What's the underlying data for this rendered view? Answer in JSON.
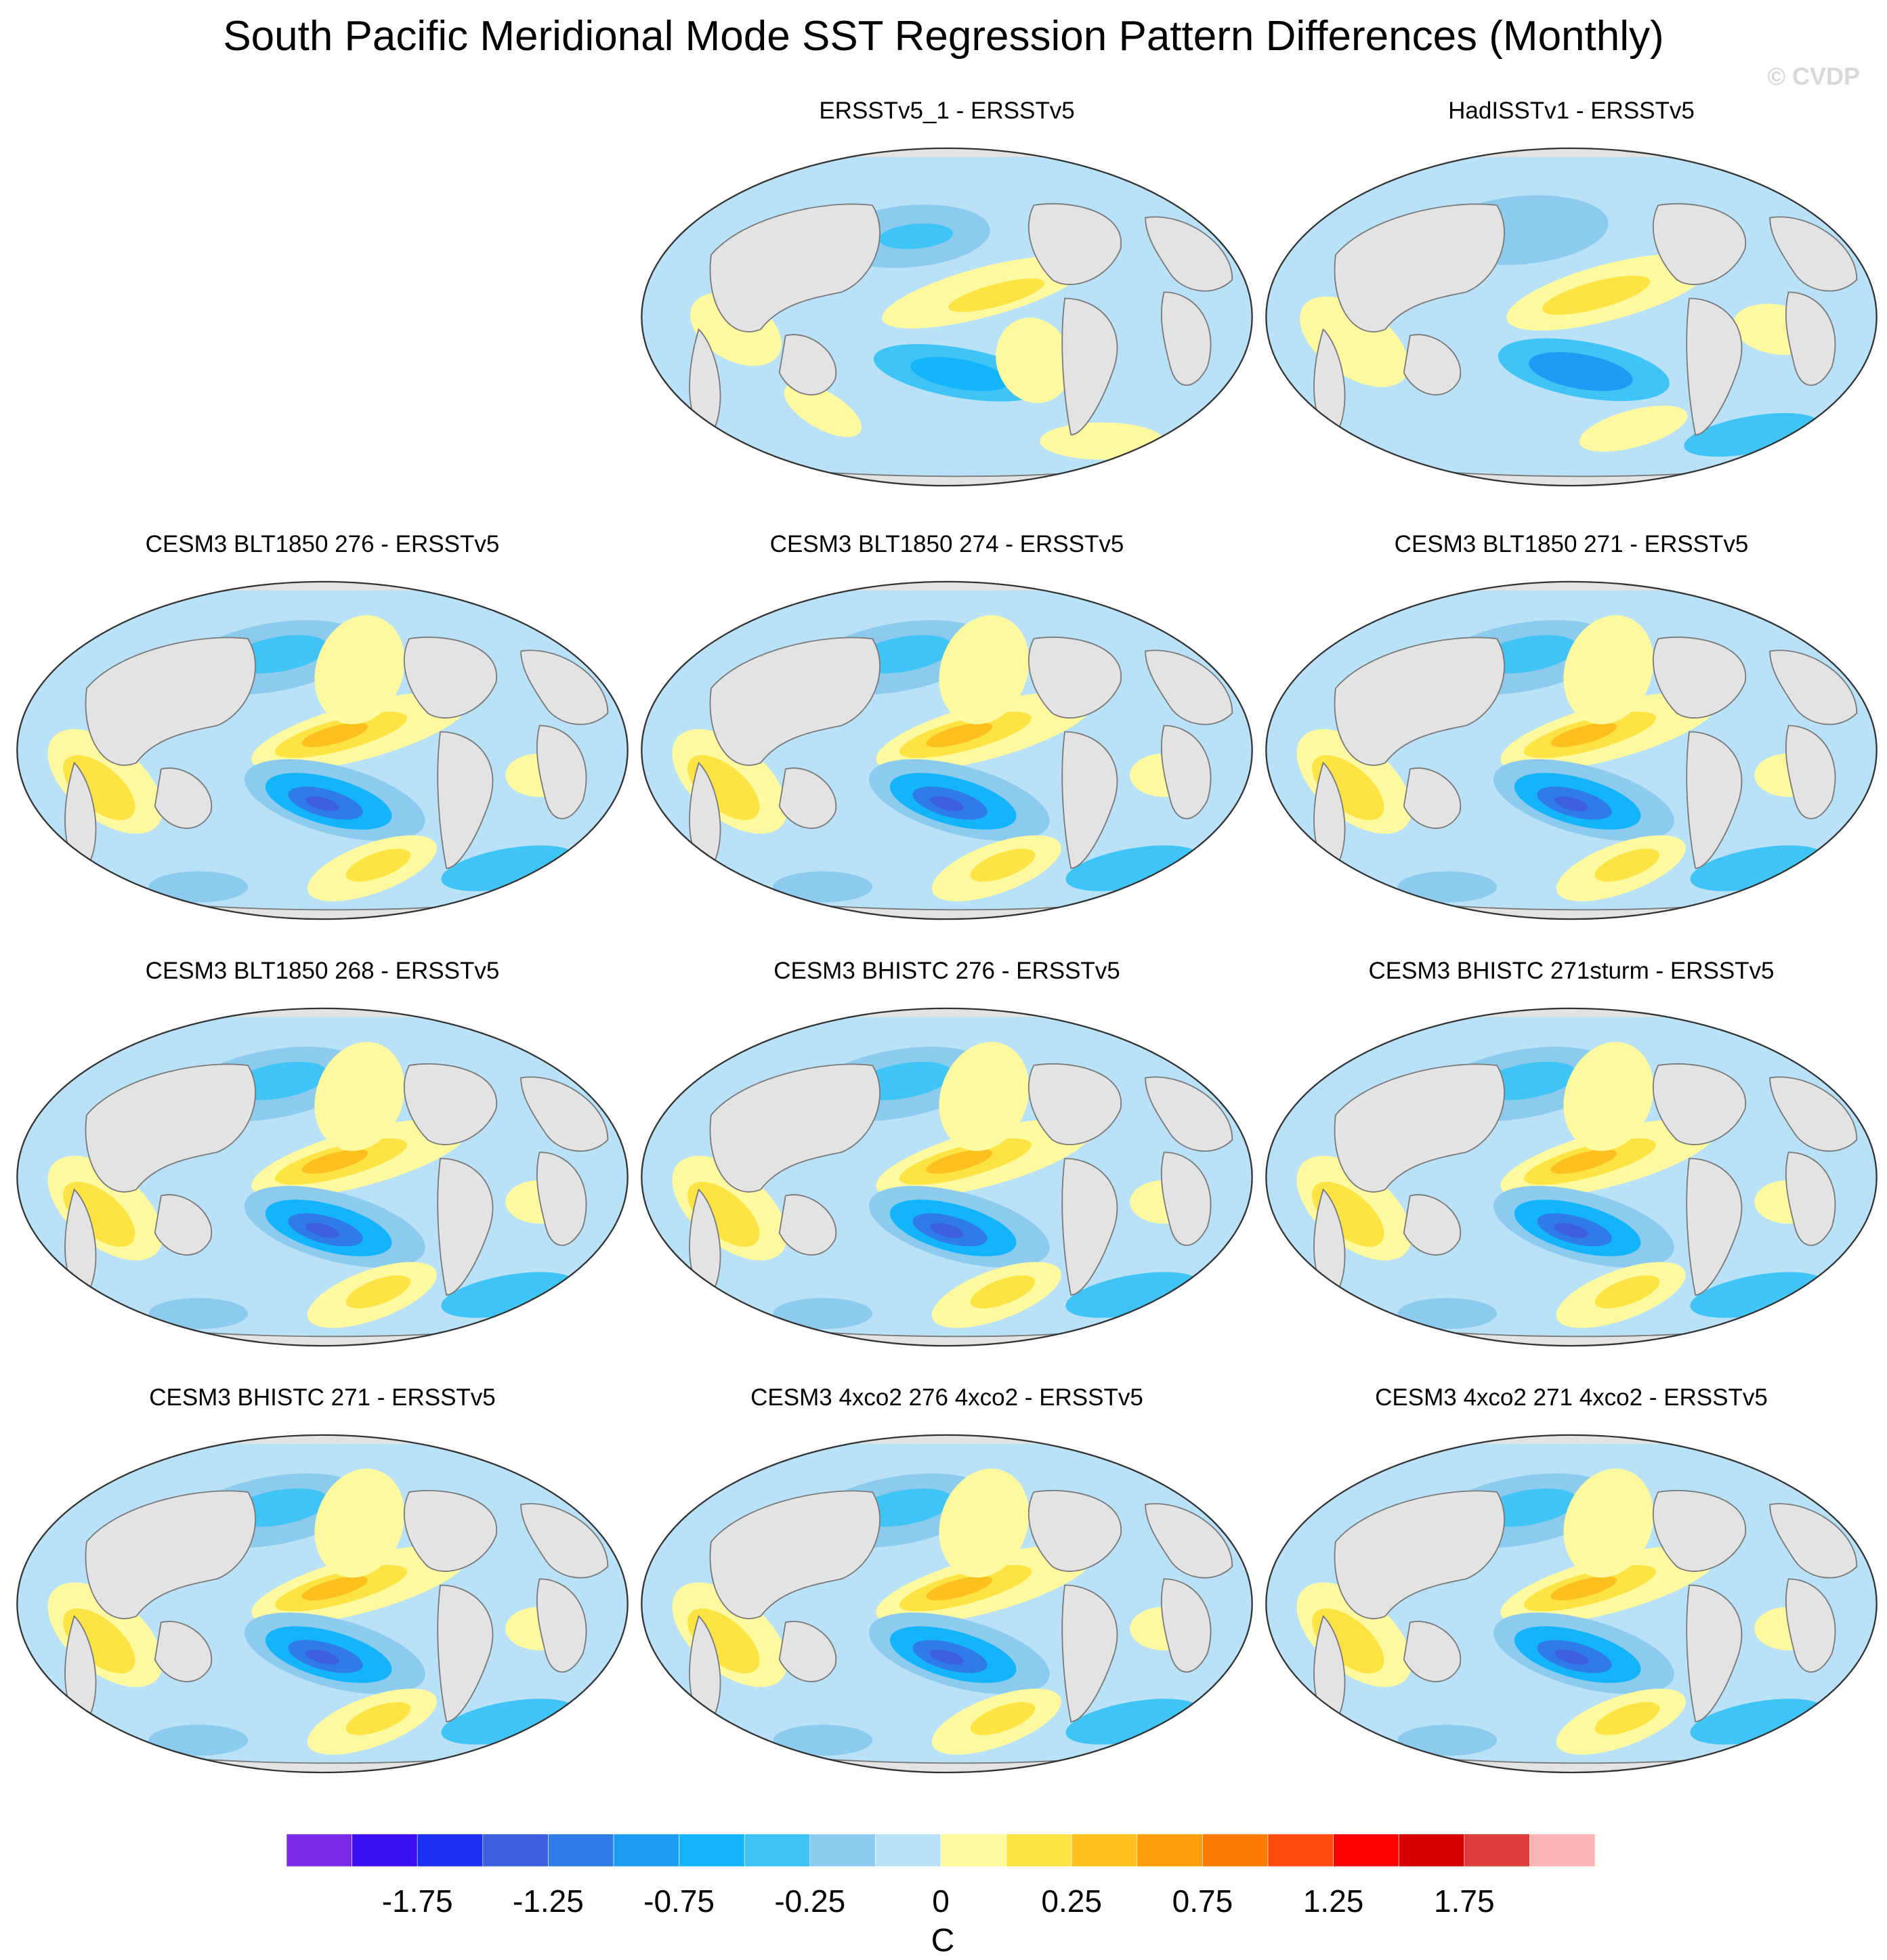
{
  "title": "South Pacific Meridional Mode SST Regression Pattern Differences (Monthly)",
  "watermark": "© CVDP",
  "panels": [
    {
      "title": "ERSSTv5_1 - ERSSTv5",
      "pattern": "obs1"
    },
    {
      "title": "HadISSTv1 - ERSSTv5",
      "pattern": "obs2"
    },
    {
      "title": "CESM3 BLT1850 276 - ERSSTv5",
      "pattern": "model"
    },
    {
      "title": "CESM3 BLT1850 274 - ERSSTv5",
      "pattern": "model"
    },
    {
      "title": "CESM3 BLT1850 271 - ERSSTv5",
      "pattern": "model"
    },
    {
      "title": "CESM3 BLT1850 268 - ERSSTv5",
      "pattern": "model"
    },
    {
      "title": "CESM3 BHISTC 276 - ERSSTv5",
      "pattern": "model"
    },
    {
      "title": "CESM3 BHISTC 271sturm - ERSSTv5",
      "pattern": "model"
    },
    {
      "title": "CESM3 BHISTC 271 - ERSSTv5",
      "pattern": "model"
    },
    {
      "title": "CESM3 4xco2 276 4xco2 - ERSSTv5",
      "pattern": "model"
    },
    {
      "title": "CESM3 4xco2 271 4xco2 - ERSSTv5",
      "pattern": "model"
    }
  ],
  "colorbar": {
    "unit": "C",
    "tick_labels": [
      "-1.75",
      "-1.25",
      "-0.75",
      "-0.25",
      "0",
      "0.25",
      "0.75",
      "1.25",
      "1.75"
    ],
    "colors": [
      "#7b2be6",
      "#3a10f2",
      "#1a2ff0",
      "#3c5fe0",
      "#2f7be8",
      "#1e9bf5",
      "#14b4fb",
      "#3fc4f5",
      "#8ccbee",
      "#b9e1f7",
      "#fffaa0",
      "#fde344",
      "#fdc01c",
      "#fd9e0c",
      "#fd7a04",
      "#fd4a0c",
      "#fd0000",
      "#d70000",
      "#dc3c3c",
      "#fdb4b4"
    ]
  }
}
